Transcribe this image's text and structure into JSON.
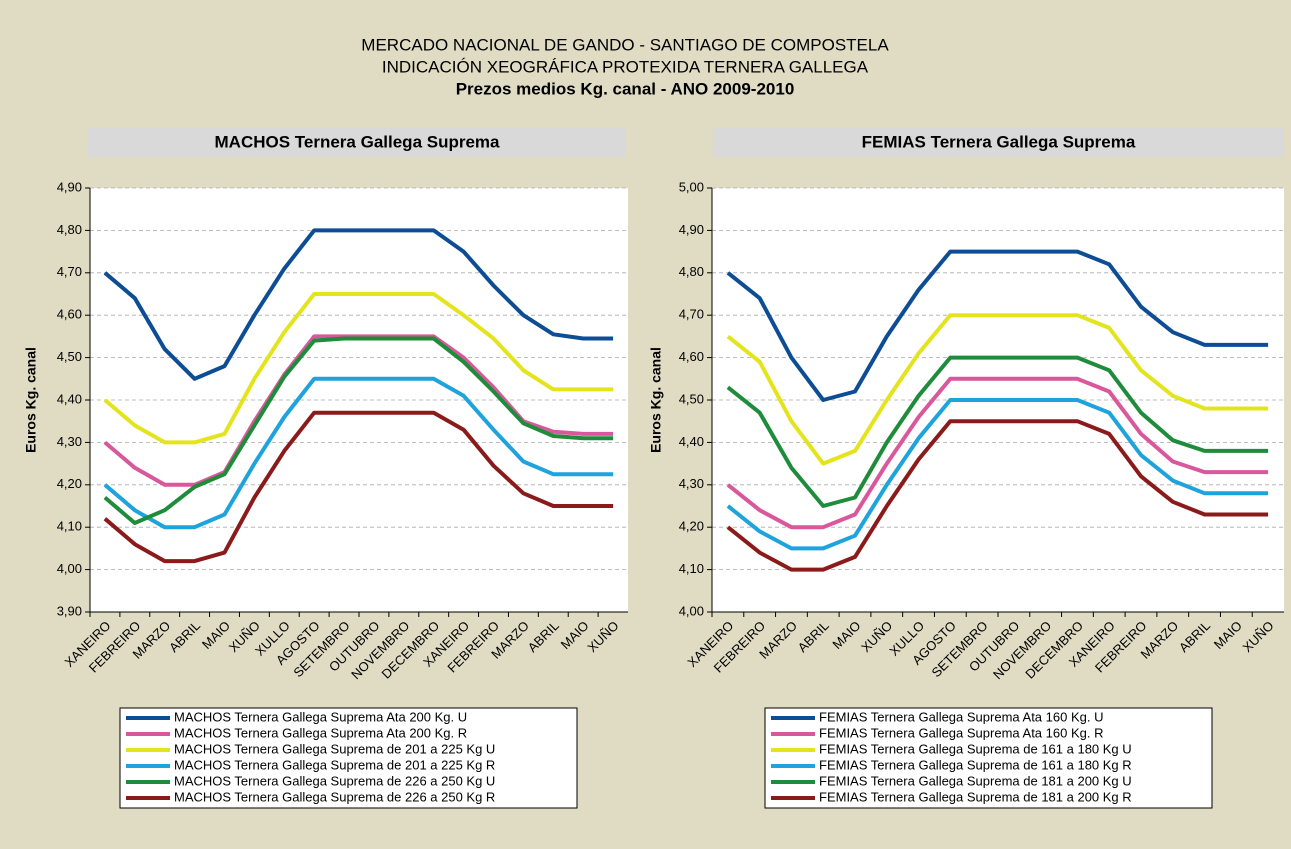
{
  "title": [
    "MERCADO NACIONAL DE GANDO - SANTIAGO DE COMPOSTELA",
    "INDICACIÓN XEOGRÁFICA PROTEXIDA TERNERA GALLEGA",
    "Prezos medios Kg. canal - ANO 2009-2010"
  ],
  "chart_data": [
    {
      "type": "line",
      "title": "MACHOS Ternera Gallega Suprema",
      "ylabel": "Euros Kg. canal",
      "categories": [
        "XANEIRO",
        "FEBREIRO",
        "MARZO",
        "ABRIL",
        "MAIO",
        "XUÑO",
        "XULLO",
        "AGOSTO",
        "SETEMBRO",
        "OUTUBRO",
        "NOVEMBRO",
        "DECEMBRO",
        "XANEIRO",
        "FEBREIRO",
        "MARZO",
        "ABRIL",
        "MAIO",
        "XUÑO"
      ],
      "ylim": [
        3.9,
        4.9
      ],
      "yticks": [
        {
          "value": 3.9,
          "label": "3,90"
        },
        {
          "value": 4.0,
          "label": "4,00"
        },
        {
          "value": 4.1,
          "label": "4,10"
        },
        {
          "value": 4.2,
          "label": "4,20"
        },
        {
          "value": 4.3,
          "label": "4,30"
        },
        {
          "value": 4.4,
          "label": "4,40"
        },
        {
          "value": 4.5,
          "label": "4,50"
        },
        {
          "value": 4.6,
          "label": "4,60"
        },
        {
          "value": 4.7,
          "label": "4,70"
        },
        {
          "value": 4.8,
          "label": "4,80"
        },
        {
          "value": 4.9,
          "label": "4,90"
        }
      ],
      "grid": true,
      "series": [
        {
          "name": "MACHOS Ternera Gallega Suprema Ata 200 Kg. U",
          "color": "#0d4d96",
          "values": [
            4.7,
            4.64,
            4.52,
            4.45,
            4.48,
            4.6,
            4.71,
            4.8,
            4.8,
            4.8,
            4.8,
            4.8,
            4.75,
            4.67,
            4.6,
            4.555,
            4.545,
            4.545
          ]
        },
        {
          "name": "MACHOS Ternera Gallega Suprema Ata 200 Kg. R",
          "color": "#d9579b",
          "values": [
            4.3,
            4.24,
            4.2,
            4.2,
            4.23,
            4.35,
            4.46,
            4.55,
            4.55,
            4.55,
            4.55,
            4.55,
            4.5,
            4.43,
            4.35,
            4.325,
            4.32,
            4.32
          ]
        },
        {
          "name": "MACHOS Ternera Gallega Suprema de 201 a 225 Kg U",
          "color": "#e3e41c",
          "values": [
            4.4,
            4.34,
            4.3,
            4.3,
            4.32,
            4.45,
            4.56,
            4.65,
            4.65,
            4.65,
            4.65,
            4.65,
            4.6,
            4.545,
            4.47,
            4.425,
            4.425,
            4.425
          ]
        },
        {
          "name": "MACHOS Ternera Gallega Suprema de 201 a 225 Kg R",
          "color": "#1ea3dc",
          "values": [
            4.2,
            4.14,
            4.1,
            4.1,
            4.13,
            4.25,
            4.36,
            4.45,
            4.45,
            4.45,
            4.45,
            4.45,
            4.41,
            4.33,
            4.255,
            4.225,
            4.225,
            4.225
          ]
        },
        {
          "name": "MACHOS Ternera Gallega Suprema de 226 a 250 Kg U",
          "color": "#1e8c3a",
          "values": [
            4.17,
            4.11,
            4.14,
            4.195,
            4.225,
            4.34,
            4.455,
            4.54,
            4.545,
            4.545,
            4.545,
            4.545,
            4.49,
            4.42,
            4.345,
            4.315,
            4.31,
            4.31
          ]
        },
        {
          "name": "MACHOS Ternera Gallega Suprema de 226 a 250 Kg R",
          "color": "#8b1a1a",
          "values": [
            4.12,
            4.06,
            4.02,
            4.02,
            4.04,
            4.17,
            4.28,
            4.37,
            4.37,
            4.37,
            4.37,
            4.37,
            4.33,
            4.245,
            4.18,
            4.15,
            4.15,
            4.15
          ]
        }
      ]
    },
    {
      "type": "line",
      "title": "FEMIAS Ternera Gallega Suprema",
      "ylabel": "Euros Kg. canal",
      "categories": [
        "XANEIRO",
        "FEBREIRO",
        "MARZO",
        "ABRIL",
        "MAIO",
        "XUÑO",
        "XULLO",
        "AGOSTO",
        "SETEMBRO",
        "OUTUBRO",
        "NOVEMBRO",
        "DECEMBRO",
        "XANEIRO",
        "FEBREIRO",
        "MARZO",
        "ABRIL",
        "MAIO",
        "XUÑO"
      ],
      "ylim": [
        4.0,
        5.0
      ],
      "yticks": [
        {
          "value": 4.0,
          "label": "4,00"
        },
        {
          "value": 4.1,
          "label": "4,10"
        },
        {
          "value": 4.2,
          "label": "4,20"
        },
        {
          "value": 4.3,
          "label": "4,30"
        },
        {
          "value": 4.4,
          "label": "4,40"
        },
        {
          "value": 4.5,
          "label": "4,50"
        },
        {
          "value": 4.6,
          "label": "4,60"
        },
        {
          "value": 4.7,
          "label": "4,70"
        },
        {
          "value": 4.8,
          "label": "4,80"
        },
        {
          "value": 4.9,
          "label": "4,90"
        },
        {
          "value": 5.0,
          "label": "5,00"
        }
      ],
      "grid": true,
      "series": [
        {
          "name": "FEMIAS Ternera Gallega Suprema Ata 160 Kg. U",
          "color": "#0d4d96",
          "values": [
            4.8,
            4.74,
            4.6,
            4.5,
            4.52,
            4.65,
            4.76,
            4.85,
            4.85,
            4.85,
            4.85,
            4.85,
            4.82,
            4.72,
            4.66,
            4.63,
            4.63,
            4.63
          ]
        },
        {
          "name": "FEMIAS Ternera Gallega Suprema Ata 160 Kg. R",
          "color": "#d9579b",
          "values": [
            4.3,
            4.24,
            4.2,
            4.2,
            4.23,
            4.35,
            4.46,
            4.55,
            4.55,
            4.55,
            4.55,
            4.55,
            4.52,
            4.42,
            4.355,
            4.33,
            4.33,
            4.33
          ]
        },
        {
          "name": "FEMIAS Ternera Gallega Suprema de 161 a 180 Kg U",
          "color": "#e3e41c",
          "values": [
            4.65,
            4.59,
            4.45,
            4.35,
            4.38,
            4.5,
            4.61,
            4.7,
            4.7,
            4.7,
            4.7,
            4.7,
            4.67,
            4.57,
            4.51,
            4.48,
            4.48,
            4.48
          ]
        },
        {
          "name": "FEMIAS Ternera Gallega Suprema de 161 a 180 Kg R",
          "color": "#1ea3dc",
          "values": [
            4.25,
            4.19,
            4.15,
            4.15,
            4.18,
            4.3,
            4.41,
            4.5,
            4.5,
            4.5,
            4.5,
            4.5,
            4.47,
            4.37,
            4.31,
            4.28,
            4.28,
            4.28
          ]
        },
        {
          "name": "FEMIAS Ternera Gallega Suprema de 181 a 200 Kg U",
          "color": "#1e8c3a",
          "values": [
            4.53,
            4.47,
            4.34,
            4.25,
            4.27,
            4.4,
            4.51,
            4.6,
            4.6,
            4.6,
            4.6,
            4.6,
            4.57,
            4.47,
            4.405,
            4.38,
            4.38,
            4.38
          ]
        },
        {
          "name": "FEMIAS Ternera Gallega Suprema de 181 a 200 Kg R",
          "color": "#8b1a1a",
          "values": [
            4.2,
            4.14,
            4.1,
            4.1,
            4.13,
            4.25,
            4.36,
            4.45,
            4.45,
            4.45,
            4.45,
            4.45,
            4.42,
            4.32,
            4.26,
            4.23,
            4.23,
            4.23
          ]
        }
      ]
    }
  ]
}
